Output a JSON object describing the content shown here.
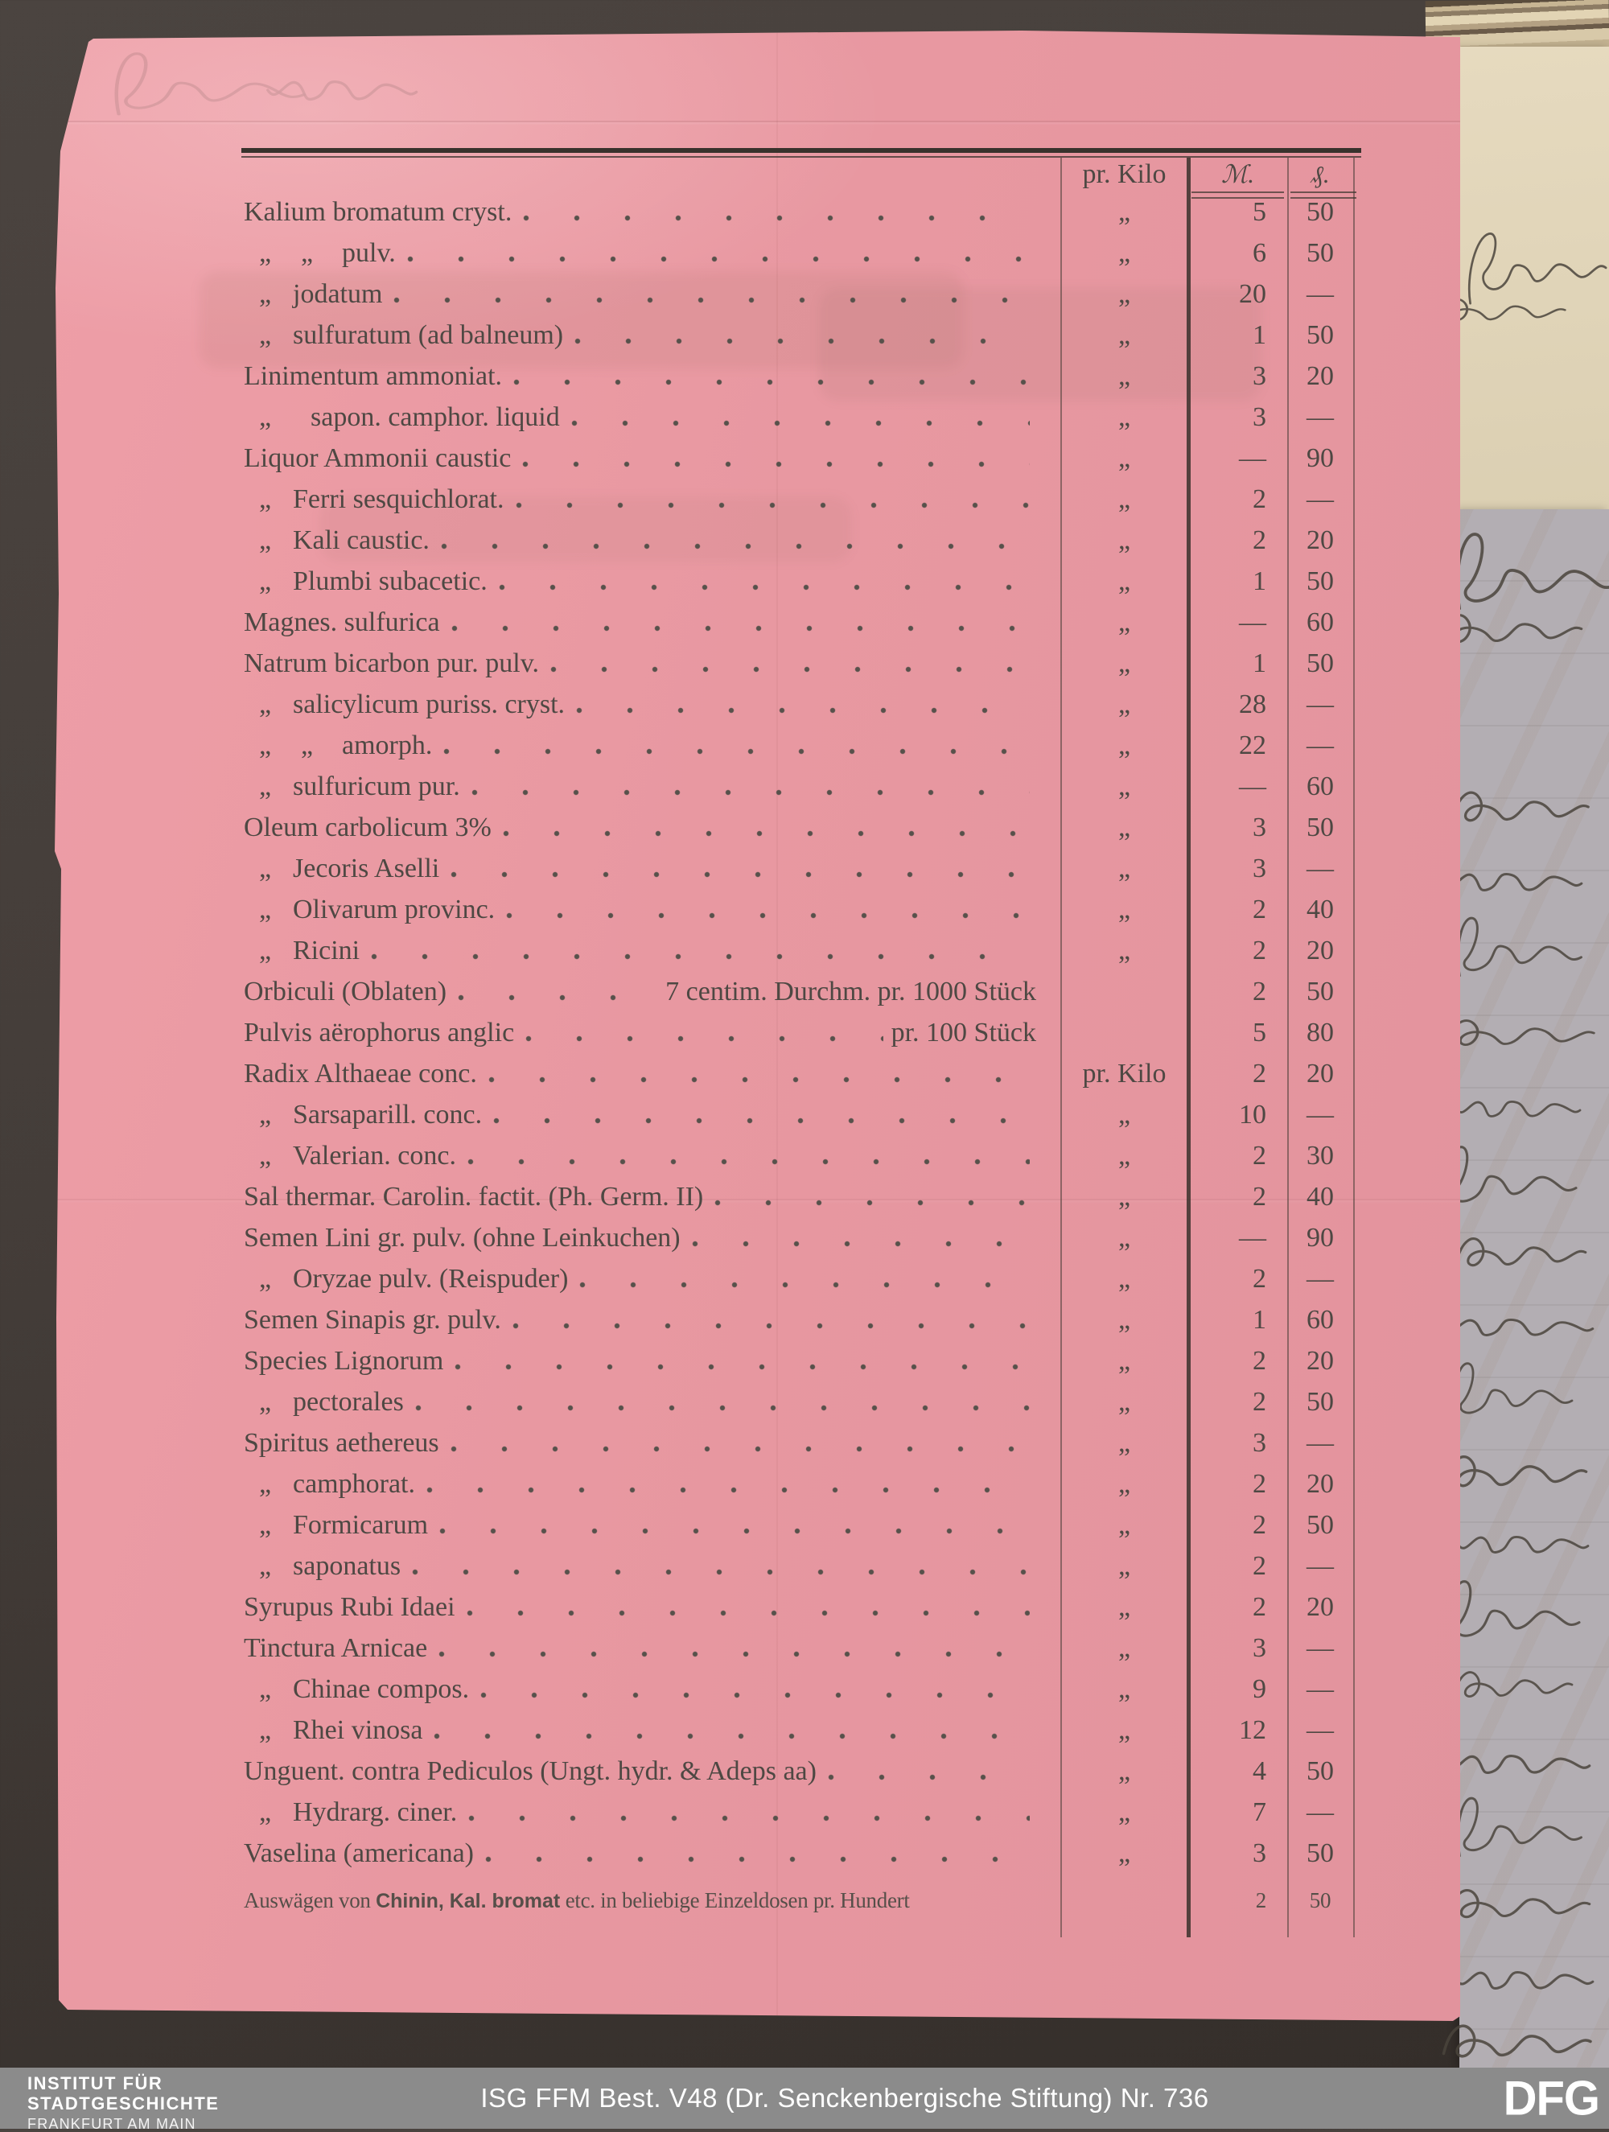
{
  "document": {
    "kind": "printed price list (pharmacy), pink paper",
    "header": {
      "unit_col": "pr. Kilo",
      "mark_col": "ℳ.",
      "pfennig_col": "₰."
    },
    "dash": "—",
    "ditto_mark": "„",
    "rows": [
      {
        "level": 0,
        "label": "Kalium bromatum cryst.",
        "unit": "„",
        "m": "5",
        "pf": "50"
      },
      {
        "level": 2,
        "label": "pulv.",
        "unit": "„",
        "m": "6",
        "pf": "50"
      },
      {
        "level": 1,
        "label": "jodatum",
        "unit": "„",
        "m": "20",
        "pf": "—"
      },
      {
        "level": 1,
        "label": "sulfuratum (ad balneum)",
        "unit": "„",
        "m": "1",
        "pf": "50"
      },
      {
        "level": 0,
        "label": "Linimentum ammoniat.",
        "unit": "„",
        "m": "3",
        "pf": "20"
      },
      {
        "level": 1,
        "label": "sapon. camphor. liquid",
        "unit": "„",
        "m": "3",
        "pf": "—",
        "pad": 38
      },
      {
        "level": 0,
        "label": "Liquor Ammonii caustic",
        "unit": "„",
        "m": "—",
        "pf": "90"
      },
      {
        "level": 1,
        "label": "Ferri sesquichlorat.",
        "unit": "„",
        "m": "2",
        "pf": "—"
      },
      {
        "level": 1,
        "label": "Kali caustic.",
        "unit": "„",
        "m": "2",
        "pf": "20"
      },
      {
        "level": 1,
        "label": "Plumbi subacetic.",
        "unit": "„",
        "m": "1",
        "pf": "50"
      },
      {
        "level": 0,
        "label": "Magnes. sulfurica",
        "unit": "„",
        "m": "—",
        "pf": "60"
      },
      {
        "level": 0,
        "label": "Natrum bicarbon pur. pulv.",
        "unit": "„",
        "m": "1",
        "pf": "50"
      },
      {
        "level": 1,
        "label": "salicylicum puriss. cryst.",
        "unit": "„",
        "m": "28",
        "pf": "—"
      },
      {
        "level": 2,
        "label": "amorph.",
        "unit": "„",
        "m": "22",
        "pf": "—"
      },
      {
        "level": 1,
        "label": "sulfuricum pur.",
        "unit": "„",
        "m": "—",
        "pf": "60"
      },
      {
        "level": 0,
        "label": "Oleum carbolicum 3%",
        "unit": "„",
        "m": "3",
        "pf": "50"
      },
      {
        "level": 1,
        "label": "Jecoris Aselli",
        "unit": "„",
        "m": "3",
        "pf": "—"
      },
      {
        "level": 1,
        "label": "Olivarum provinc.",
        "unit": "„",
        "m": "2",
        "pf": "40"
      },
      {
        "level": 1,
        "label": "Ricini",
        "unit": "„",
        "m": "2",
        "pf": "20"
      },
      {
        "level": 0,
        "label": "Orbiculi (Oblaten)",
        "suffix": "7 centim. Durchm. pr. 1000 Stück",
        "unit": "",
        "m": "2",
        "pf": "50"
      },
      {
        "level": 0,
        "label": "Pulvis aërophorus anglic",
        "suffix": "pr. 100 Stück",
        "unit": "",
        "m": "5",
        "pf": "80"
      },
      {
        "level": 0,
        "label": "Radix Althaeae conc.",
        "unit": "pr. Kilo",
        "m": "2",
        "pf": "20"
      },
      {
        "level": 1,
        "label": "Sarsaparill. conc.",
        "unit": "„",
        "m": "10",
        "pf": "—"
      },
      {
        "level": 1,
        "label": "Valerian. conc.",
        "unit": "„",
        "m": "2",
        "pf": "30"
      },
      {
        "level": 0,
        "label": "Sal thermar. Carolin. factit. (Ph. Germ. II)",
        "unit": "„",
        "m": "2",
        "pf": "40"
      },
      {
        "level": 0,
        "label": "Semen Lini gr. pulv. (ohne Leinkuchen)",
        "unit": "„",
        "m": "—",
        "pf": "90"
      },
      {
        "level": 1,
        "label": "Oryzae pulv. (Reispuder)",
        "unit": "„",
        "m": "2",
        "pf": "—"
      },
      {
        "level": 0,
        "label": "Semen Sinapis gr. pulv.",
        "unit": "„",
        "m": "1",
        "pf": "60"
      },
      {
        "level": 0,
        "label": "Species Lignorum",
        "unit": "„",
        "m": "2",
        "pf": "20"
      },
      {
        "level": 1,
        "label": "pectorales",
        "unit": "„",
        "m": "2",
        "pf": "50"
      },
      {
        "level": 0,
        "label": "Spiritus aethereus",
        "unit": "„",
        "m": "3",
        "pf": "—"
      },
      {
        "level": 1,
        "label": "camphorat.",
        "unit": "„",
        "m": "2",
        "pf": "20"
      },
      {
        "level": 1,
        "label": "Formicarum",
        "unit": "„",
        "m": "2",
        "pf": "50"
      },
      {
        "level": 1,
        "label": "saponatus",
        "unit": "„",
        "m": "2",
        "pf": "—"
      },
      {
        "level": 0,
        "label": "Syrupus Rubi Idaei",
        "unit": "„",
        "m": "2",
        "pf": "20"
      },
      {
        "level": 0,
        "label": "Tinctura Arnicae",
        "unit": "„",
        "m": "3",
        "pf": "—"
      },
      {
        "level": 1,
        "label": "Chinae compos.",
        "unit": "„",
        "m": "9",
        "pf": "—"
      },
      {
        "level": 1,
        "label": "Rhei vinosa",
        "unit": "„",
        "m": "12",
        "pf": "—"
      },
      {
        "level": 0,
        "label": "Unguent. contra Pediculos (Ungt. hydr. & Adeps aa)",
        "unit": "„",
        "m": "4",
        "pf": "50"
      },
      {
        "level": 1,
        "label": "Hydrarg. ciner.",
        "unit": "„",
        "m": "7",
        "pf": "—"
      },
      {
        "level": 0,
        "label": "Vaselina (americana)",
        "unit": "„",
        "m": "3",
        "pf": "50"
      },
      {
        "level": 0,
        "small": true,
        "dots": false,
        "parts": [
          "Auswägen von ",
          "Chinin, Kal. bromat",
          " etc. in beliebige Einzeldosen pr. Hundert"
        ],
        "unit": "",
        "m": "2",
        "pf": "50"
      }
    ]
  },
  "side_papers": {
    "top_right_note": "illegible handwritten cursive fragments (ink)",
    "right_letter": "illegible handwritten cursive fragments, cut off at image edge"
  },
  "footer": {
    "institute_line1": "INSTITUT FÜR",
    "institute_line2": "STADTGESCHICHTE",
    "institute_line3": "FRANKFURT AM MAIN",
    "caption": "ISG FFM Best. V48 (Dr. Senckenbergische Stiftung) Nr. 736",
    "logo": "DFG"
  },
  "colors": {
    "pink_paper": "#e898a1",
    "cream_paper": "#e0d4b8",
    "gray_letter_paper": "#b3aeb3",
    "ink": "#4e4843",
    "mat_background": "#443d39",
    "footer_bar": "#8b8b8b",
    "footer_text": "#ffffff"
  }
}
